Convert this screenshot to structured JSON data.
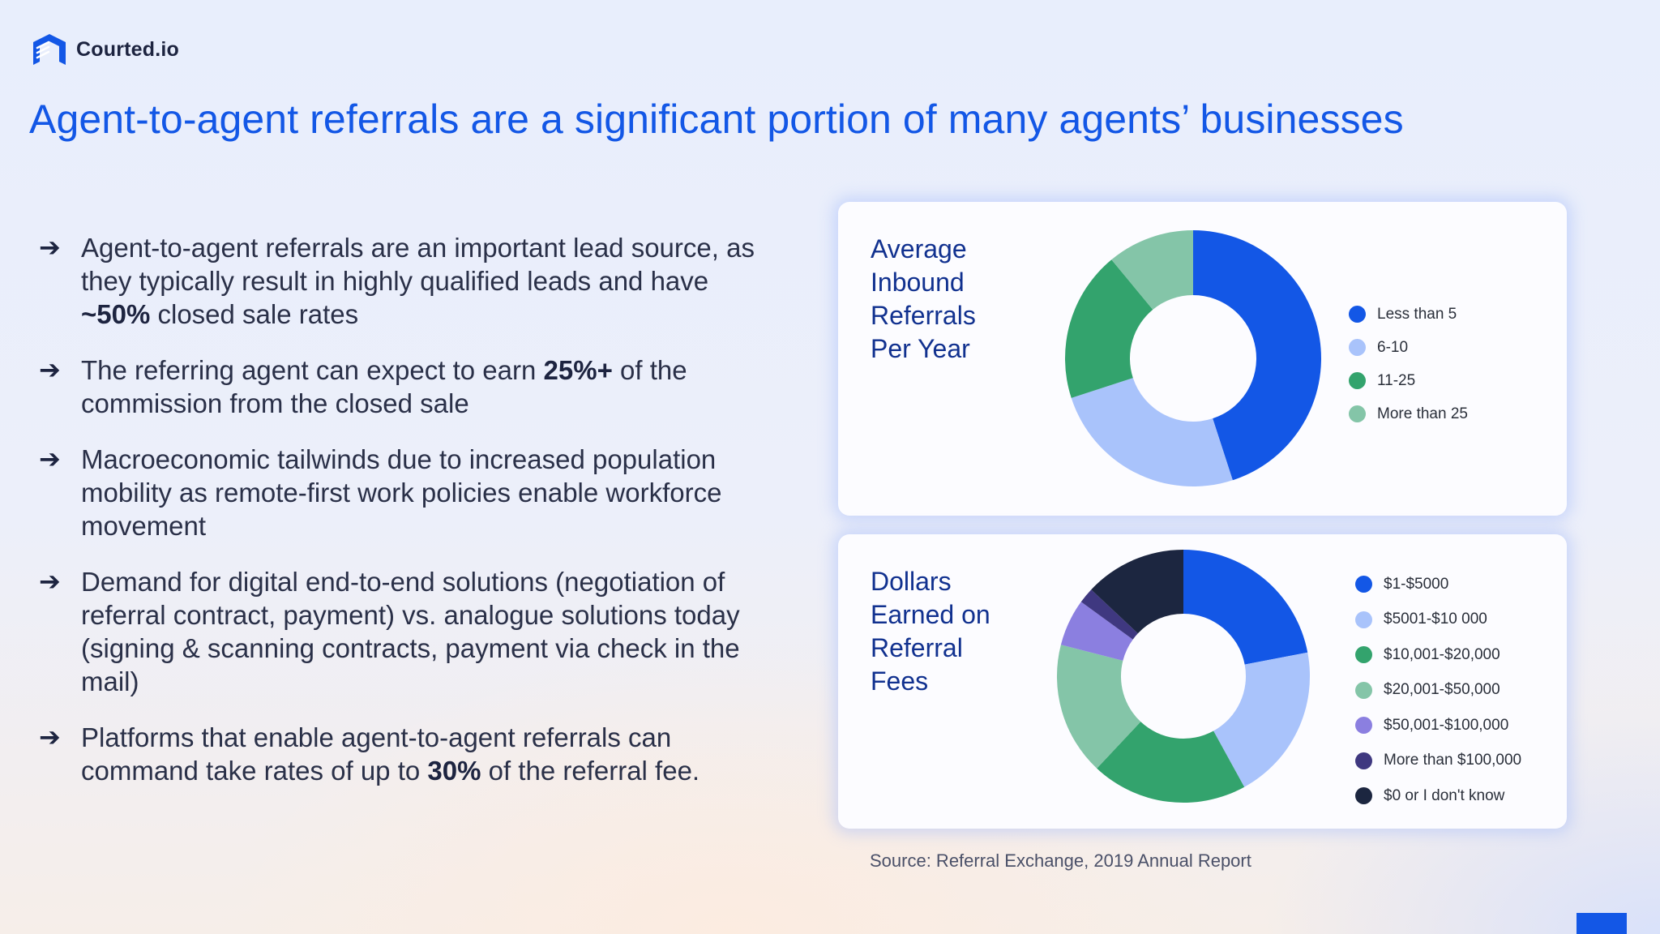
{
  "brand": {
    "logo_icon": "courted-house-icon",
    "name": "Courted.io",
    "accent_color": "#1357e6"
  },
  "headline": "Agent-to-agent referrals are a significant portion of many agents’ businesses",
  "bullets": [
    {
      "icon": "arrow-right-icon",
      "before": "Agent-to-agent referrals are an important lead source, as they typically result in highly qualified leads and have ",
      "bold": "~50%",
      "after": " closed sale rates"
    },
    {
      "icon": "arrow-right-icon",
      "before": "The referring agent can expect to earn ",
      "bold": "25%+",
      "after": " of the commission from the closed sale"
    },
    {
      "icon": "arrow-right-icon",
      "before": "Macroeconomic tailwinds due to increased population mobility as remote-first work policies enable workforce movement",
      "bold": "",
      "after": ""
    },
    {
      "icon": "arrow-right-icon",
      "before": "Demand for digital end-to-end solutions (negotiation of referral contract, payment) vs. analogue solutions today (signing & scanning contracts, payment via check in the mail)",
      "bold": "",
      "after": ""
    },
    {
      "icon": "arrow-right-icon",
      "before": "Platforms that enable agent-to-agent referrals can command take rates of up to ",
      "bold": "30%",
      "after": " of the referral fee."
    }
  ],
  "source": "Source: Referral Exchange, 2019 Annual Report",
  "chart_data": [
    {
      "type": "pie",
      "subtype": "donut",
      "title": "Average Inbound Referrals Per Year",
      "title_lines": [
        "Average",
        "Inbound",
        "Referrals",
        "Per Year"
      ],
      "categories": [
        "Less than 5",
        "6-10",
        "11-25",
        "More than 25"
      ],
      "values": [
        45,
        25,
        19,
        11
      ],
      "unit": "% (estimated from slice angles)",
      "colors": [
        "#1357e6",
        "#a9c3fb",
        "#33a36d",
        "#84c5a8"
      ],
      "legend_position": "right",
      "start_angle": "12 o'clock, clockwise"
    },
    {
      "type": "pie",
      "subtype": "donut",
      "title": "Dollars Earned on Referral Fees",
      "title_lines": [
        "Dollars",
        "Earned on",
        "Referral",
        "Fees"
      ],
      "categories": [
        "$1-$5000",
        "$5001-$10 000",
        "$10,001-$20,000",
        "$20,001-$50,000",
        "$50,001-$100,000",
        "More than $100,000",
        "$0 or I don't know"
      ],
      "values": [
        22,
        20,
        20,
        17,
        6,
        2,
        13
      ],
      "unit": "% (estimated from slice angles)",
      "colors": [
        "#1357e6",
        "#a9c3fb",
        "#33a36d",
        "#84c5a8",
        "#8b7fe0",
        "#3f3880",
        "#1c2640"
      ],
      "legend_position": "right",
      "start_angle": "12 o'clock, clockwise"
    }
  ]
}
